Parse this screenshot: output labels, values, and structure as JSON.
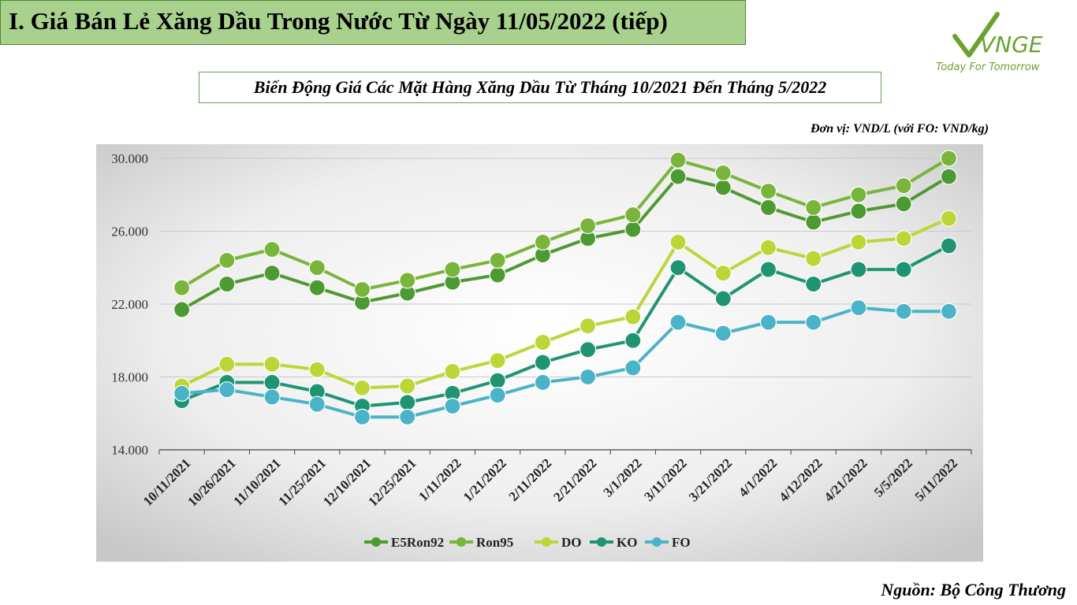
{
  "header": {
    "title": "I. Giá Bán Lẻ Xăng Dầu Trong Nước Từ Ngày 11/05/2022 (tiếp)"
  },
  "logo": {
    "text": "VNGE",
    "tagline": "Today For Tomorrow",
    "color": "#6aa22e"
  },
  "unit_note": "Đơn vị: VND/L (với FO: VND/kg)",
  "source_note": "Nguồn: Bộ Công Thương",
  "chart_data": {
    "type": "line",
    "title": "Biến Động Giá Các Mặt Hàng Xăng Dầu Từ Tháng 10/2021 Đến Tháng 5/2022",
    "xlabel": "",
    "ylabel": "",
    "categories": [
      "10/11/2021",
      "10/26/2021",
      "11/10/2021",
      "11/25/2021",
      "12/10/2021",
      "12/25/2021",
      "1/11/2022",
      "1/21/2022",
      "2/11/2022",
      "2/21/2022",
      "3/1/2022",
      "3/11/2022",
      "3/21/2022",
      "4/1/2022",
      "4/12/2022",
      "4/21/2022",
      "5/5/2022",
      "5/11/2022"
    ],
    "ylim": [
      14000,
      30000
    ],
    "yticks": [
      14000,
      18000,
      22000,
      26000,
      30000
    ],
    "ytick_labels": [
      "14.000",
      "18.000",
      "22.000",
      "26.000",
      "30.000"
    ],
    "grid": true,
    "legend_position": "bottom",
    "series": [
      {
        "name": "E5Ron92",
        "color": "#4e9a32",
        "values": [
          21700,
          23100,
          23700,
          22900,
          22100,
          22600,
          23200,
          23600,
          24700,
          25600,
          26100,
          29000,
          28400,
          27300,
          26500,
          27100,
          27500,
          29000
        ]
      },
      {
        "name": "Ron95",
        "color": "#78b53a",
        "values": [
          22900,
          24400,
          25000,
          24000,
          22800,
          23300,
          23900,
          24400,
          25400,
          26300,
          26900,
          29900,
          29200,
          28200,
          27300,
          28000,
          28500,
          30000
        ]
      },
      {
        "name": "DO",
        "color": "#bcd638",
        "values": [
          17500,
          18700,
          18700,
          18400,
          17400,
          17500,
          18300,
          18900,
          19900,
          20800,
          21300,
          25400,
          23700,
          25100,
          24500,
          25400,
          25600,
          26700
        ]
      },
      {
        "name": "KO",
        "color": "#1f9473",
        "values": [
          16700,
          17700,
          17700,
          17200,
          16400,
          16600,
          17100,
          17800,
          18800,
          19500,
          20000,
          24000,
          22300,
          23900,
          23100,
          23900,
          23900,
          25200
        ]
      },
      {
        "name": "FO",
        "color": "#4bb3c8",
        "values": [
          17100,
          17300,
          16900,
          16500,
          15800,
          15800,
          16400,
          17000,
          17700,
          18000,
          18500,
          21000,
          20400,
          21000,
          21000,
          21800,
          21600,
          21600
        ]
      }
    ]
  }
}
